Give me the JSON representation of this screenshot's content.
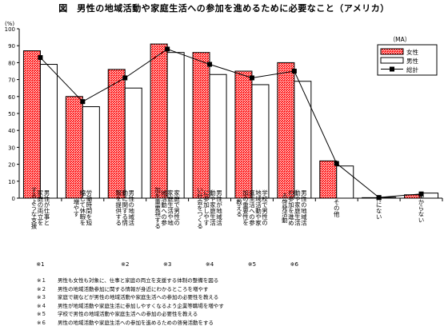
{
  "chart_data": {
    "type": "bar",
    "title": "図　男性の地域活動や家庭生活への参加を進めるために必要なこと（アメリカ）",
    "ylabel": "(%)",
    "unit_label": "（MA）",
    "ylim": [
      0,
      100
    ],
    "yticks": [
      "0",
      "10",
      "20",
      "30",
      "40",
      "50",
      "60",
      "70",
      "80",
      "90",
      "100"
    ],
    "grid": false,
    "legend_position": "top-right",
    "categories": [
      {
        "lines": [
          "男性が仕事と",
          "家庭の両立を",
          "するような支援"
        ],
        "mark": "※1"
      },
      {
        "lines": [
          "労働時間を短",
          "縮して休暇を",
          "増やす"
        ],
        "mark": ""
      },
      {
        "lines": [
          "男性の地域活",
          "動に関する情",
          "報を提供する"
        ],
        "mark": "※2"
      },
      {
        "lines": [
          "家庭で男性の",
          "家庭生活や地",
          "域活動への参",
          "加を重要視する"
        ],
        "mark": "※3"
      },
      {
        "lines": [
          "男性が地域活",
          "動や家庭生活",
          "に参加しやす",
          "い社会をつくる"
        ],
        "mark": "※4"
      },
      {
        "lines": [
          "学校で男性の",
          "地域活動や家",
          "庭生活への参",
          "加の重要性を",
          "教える"
        ],
        "mark": "※5"
      },
      {
        "lines": [
          "男性の地域活",
          "動や家庭生活",
          "の参加を進め",
          "る啓発活動"
        ],
        "mark": "※6"
      },
      {
        "lines": [
          "その他"
        ],
        "mark": ""
      },
      {
        "lines": [
          "特にない"
        ],
        "mark": ""
      },
      {
        "lines": [
          "わからない"
        ],
        "mark": ""
      }
    ],
    "series": [
      {
        "name": "女性",
        "type": "bar",
        "color": "#ff0000",
        "values": [
          87,
          60,
          76,
          91,
          86,
          75,
          80,
          22,
          0.3,
          2
        ]
      },
      {
        "name": "男性",
        "type": "bar",
        "color": "#ffffff",
        "values": [
          79,
          54,
          65,
          86,
          73,
          67,
          69,
          19,
          0.5,
          3
        ]
      },
      {
        "name": "総計",
        "type": "line",
        "color": "#000000",
        "values": [
          83,
          57,
          71,
          88,
          79,
          71,
          75,
          20.5,
          0.4,
          2.5
        ]
      }
    ]
  },
  "notes": [
    {
      "mark": "※１",
      "text": "男性も女性も対象に、仕事と家庭の両立を支援する体制の整備を図る"
    },
    {
      "mark": "※２",
      "text": "男性の地域活動参加に関する情報が身近にわかるところを増やす"
    },
    {
      "mark": "※３",
      "text": "家庭で親などが男性の地域活動や家庭生活への参加の必要性を教える"
    },
    {
      "mark": "※４",
      "text": "男性が地域活動や家庭生活に参加しやすくなるよう企業等職場を増やす"
    },
    {
      "mark": "※５",
      "text": "学校で男性の地域活動や家庭生活への参加の必要性を教える"
    },
    {
      "mark": "※６",
      "text": "男性の地域活動や家庭生活への参加を進めるための啓発活動をする"
    }
  ]
}
